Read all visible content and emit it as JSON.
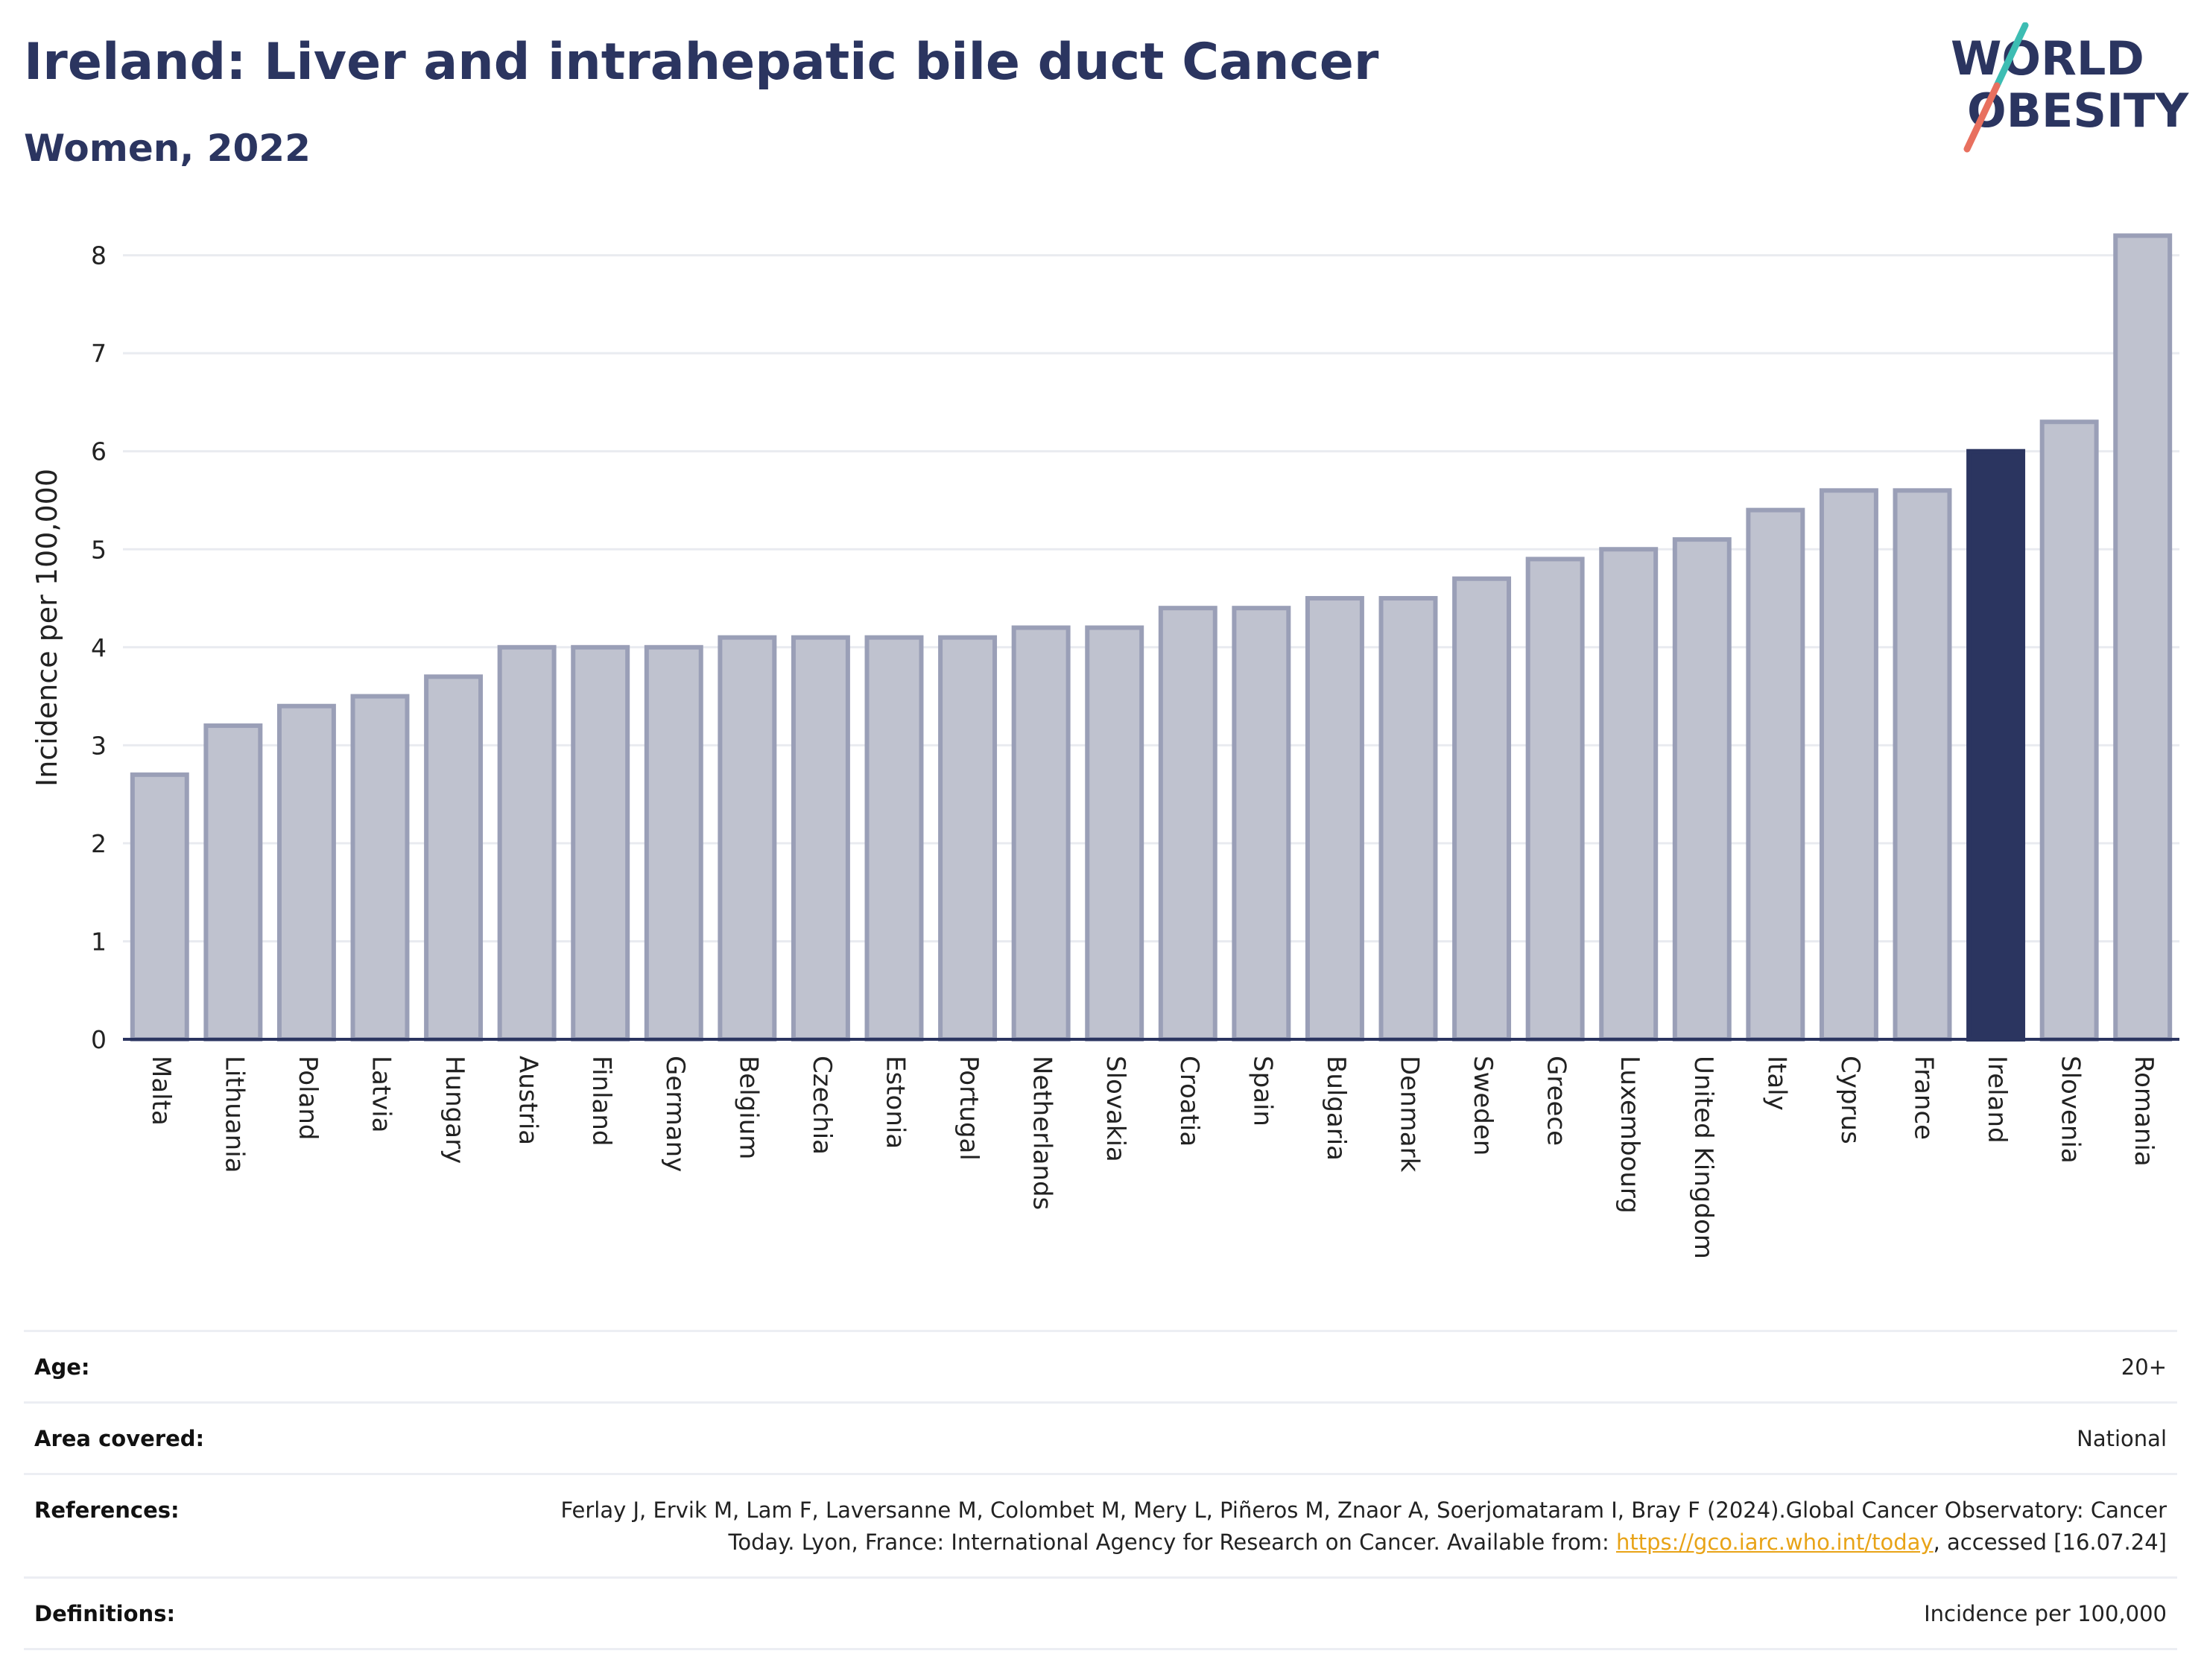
{
  "header": {
    "title": "Ireland: Liver and intrahepatic bile duct Cancer",
    "subtitle": "Women, 2022"
  },
  "logo": {
    "line1": "WORLD",
    "line2": "OBESITY",
    "colors": {
      "text": "#2b3560",
      "slash_teal": "#3dbdb3",
      "slash_coral": "#e8705f"
    }
  },
  "chart_data": {
    "type": "bar",
    "categories": [
      "Malta",
      "Lithuania",
      "Poland",
      "Latvia",
      "Hungary",
      "Austria",
      "Finland",
      "Germany",
      "Belgium",
      "Czechia",
      "Estonia",
      "Portugal",
      "Netherlands",
      "Slovakia",
      "Croatia",
      "Spain",
      "Bulgaria",
      "Denmark",
      "Sweden",
      "Greece",
      "Luxembourg",
      "United Kingdom",
      "Italy",
      "Cyprus",
      "France",
      "Ireland",
      "Slovenia",
      "Romania"
    ],
    "values": [
      2.7,
      3.2,
      3.4,
      3.5,
      3.7,
      4.0,
      4.0,
      4.0,
      4.1,
      4.1,
      4.1,
      4.1,
      4.2,
      4.2,
      4.4,
      4.4,
      4.5,
      4.5,
      4.7,
      4.9,
      5.0,
      5.1,
      5.4,
      5.6,
      5.6,
      6.0,
      6.3,
      8.2
    ],
    "highlight": "Ireland",
    "ylabel": "Incidence per 100,000",
    "xlabel": "",
    "ylim": [
      0,
      8.4
    ],
    "yticks": [
      0,
      1,
      2,
      3,
      4,
      5,
      6,
      7,
      8
    ],
    "grid": true,
    "colors": {
      "bar": "#bfc2cf",
      "bar_border": "#9a9fb7",
      "highlight": "#2b3560",
      "grid": "#e9ebf0",
      "axis": "#2b3560"
    }
  },
  "info": {
    "age": {
      "label": "Age:",
      "value": "20+"
    },
    "area": {
      "label": "Area covered:",
      "value": "National"
    },
    "references": {
      "label": "References:",
      "text1": "Ferlay J, Ervik M, Lam F, Laversanne M, Colombet M, Mery L, Piñeros M, Znaor A, Soerjomataram I, Bray F (2024).Global Cancer Observatory: Cancer Today. Lyon, France: International Agency for Research on Cancer. Available from: ",
      "link": "https://gco.iarc.who.int/today",
      "text2": ", accessed [16.07.24]"
    },
    "definitions": {
      "label": "Definitions:",
      "value": "Incidence per 100,000"
    }
  }
}
